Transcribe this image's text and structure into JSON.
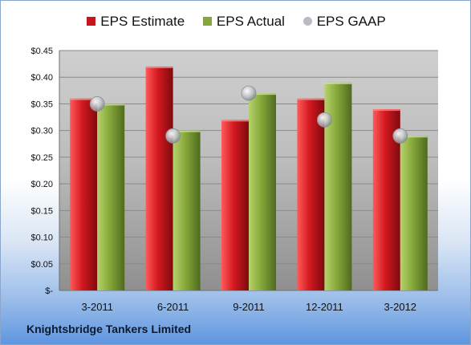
{
  "footer": {
    "company": "Knightsbridge Tankers Limited"
  },
  "chart_data": {
    "type": "bar",
    "categories": [
      "3-2011",
      "6-2011",
      "9-2011",
      "12-2011",
      "3-2012"
    ],
    "series": [
      {
        "name": "EPS Estimate",
        "kind": "bar",
        "color": "#c8141c",
        "values": [
          0.36,
          0.42,
          0.32,
          0.36,
          0.34
        ]
      },
      {
        "name": "EPS Actual",
        "kind": "bar",
        "color": "#86a83a",
        "values": [
          0.35,
          0.3,
          0.37,
          0.39,
          0.29
        ]
      },
      {
        "name": "EPS GAAP",
        "kind": "marker",
        "color": "#b9bcc4",
        "values": [
          0.35,
          0.29,
          0.37,
          0.32,
          0.29
        ]
      }
    ],
    "ylim": [
      0,
      0.45
    ],
    "yticks": [
      0,
      0.05,
      0.1,
      0.15,
      0.2,
      0.25,
      0.3,
      0.35,
      0.4,
      0.45
    ],
    "ytick_labels": [
      "$-",
      "$0.05",
      "$0.10",
      "$0.15",
      "$0.20",
      "$0.25",
      "$0.30",
      "$0.35",
      "$0.40",
      "$0.45"
    ],
    "grid": true,
    "legend": "top"
  }
}
